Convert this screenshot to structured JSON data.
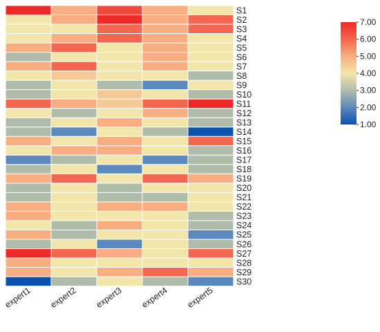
{
  "chart_data": {
    "type": "heatmap",
    "title": "",
    "xlabel": "",
    "ylabel": "",
    "columns": [
      "expert1",
      "expert2",
      "expert3",
      "expert4",
      "expert5"
    ],
    "rows": [
      "S1",
      "S2",
      "S3",
      "S4",
      "S5",
      "S6",
      "S7",
      "S8",
      "S9",
      "S10",
      "S11",
      "S12",
      "S13",
      "S14",
      "S15",
      "S16",
      "S17",
      "S18",
      "S19",
      "S20",
      "S21",
      "S22",
      "S23",
      "S24",
      "S25",
      "S26",
      "S27",
      "S28",
      "S29",
      "S30"
    ],
    "values": [
      [
        7,
        5,
        6.5,
        5,
        4
      ],
      [
        4,
        5,
        7,
        5,
        6
      ],
      [
        4,
        4,
        6,
        5,
        6
      ],
      [
        4,
        5,
        6,
        5,
        4
      ],
      [
        5,
        6,
        4,
        5,
        4
      ],
      [
        3,
        4,
        4,
        5,
        4
      ],
      [
        5,
        6,
        4,
        5,
        4
      ],
      [
        4,
        4.5,
        4,
        4,
        3
      ],
      [
        3,
        4,
        3,
        2,
        4
      ],
      [
        3,
        4,
        4.5,
        4,
        3
      ],
      [
        6,
        5,
        4.5,
        6,
        7
      ],
      [
        4,
        3,
        4,
        5,
        3
      ],
      [
        3,
        4,
        5,
        4,
        3
      ],
      [
        3,
        2,
        4,
        3,
        1
      ],
      [
        5,
        4,
        5,
        4,
        6
      ],
      [
        4,
        5,
        5,
        4,
        3
      ],
      [
        2,
        3,
        4,
        2,
        3
      ],
      [
        3,
        4,
        2,
        4,
        3
      ],
      [
        5,
        6,
        4,
        6,
        5
      ],
      [
        3,
        4,
        3,
        4,
        4
      ],
      [
        3,
        4,
        3,
        3,
        4
      ],
      [
        5,
        4,
        5,
        5,
        4
      ],
      [
        5,
        4,
        4,
        4,
        3
      ],
      [
        4,
        3,
        5,
        4,
        3
      ],
      [
        5,
        3,
        4,
        4,
        2
      ],
      [
        3,
        4,
        2,
        4,
        3
      ],
      [
        7,
        6,
        5,
        4,
        6
      ],
      [
        5,
        4,
        4,
        4,
        4
      ],
      [
        5,
        4,
        5,
        6,
        5
      ],
      [
        1,
        3,
        4,
        3,
        2
      ]
    ],
    "colorbar": {
      "min": 1,
      "max": 7,
      "ticks": [
        "7.00",
        "6.00",
        "5.00",
        "4.00",
        "3.00",
        "2.00",
        "1.00"
      ],
      "colors": [
        "#0a52ad",
        "#5b88bd",
        "#b0bcaa",
        "#f2e6aa",
        "#f8ae81",
        "#f36650",
        "#ed2a29"
      ]
    },
    "grid_color": "#ffffff"
  }
}
